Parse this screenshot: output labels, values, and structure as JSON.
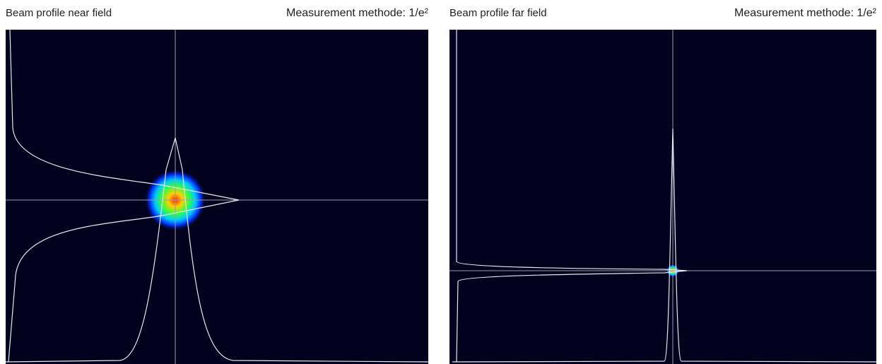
{
  "panels": [
    {
      "title": "Beam profile near field",
      "method": "Measurement methode: 1/e²"
    },
    {
      "title": "Beam profile far field",
      "method": "Measurement methode: 1/e²"
    }
  ]
}
